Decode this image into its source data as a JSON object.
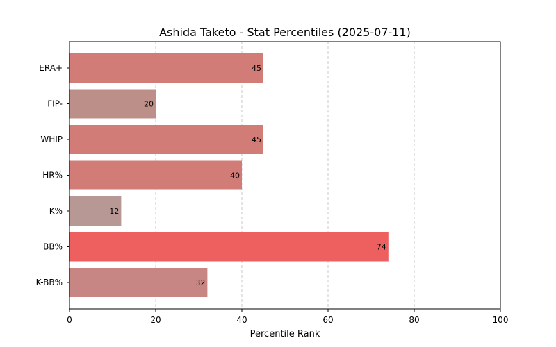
{
  "chart_data": {
    "type": "bar",
    "orientation": "horizontal",
    "title": "Ashida Taketo - Stat Percentiles (2025-07-11)",
    "xlabel": "Percentile Rank",
    "ylabel": "",
    "xlim": [
      0,
      100
    ],
    "xticks": [
      0,
      20,
      40,
      60,
      80,
      100
    ],
    "grid": "x-dashed",
    "categories": [
      "ERA+",
      "FIP-",
      "WHIP",
      "HR%",
      "K%",
      "BB%",
      "K-BB%"
    ],
    "values": [
      45,
      20,
      45,
      40,
      12,
      74,
      32
    ],
    "colors": [
      "#d27c78",
      "#bd8f89",
      "#d27c78",
      "#d27c78",
      "#b89894",
      "#ee5f5f",
      "#c78683"
    ]
  }
}
